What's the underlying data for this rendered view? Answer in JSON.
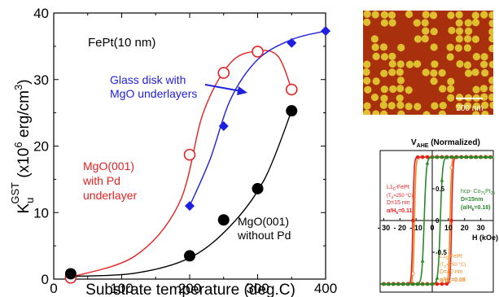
{
  "chart_data": [
    {
      "type": "scatter",
      "xlabel": "Substrate temperature (deg.C)",
      "ylabel_main": "K",
      "ylabel_sub": "u",
      "ylabel_sup": "GST",
      "ylabel_unit_a": " (x10",
      "ylabel_unit_sup": "6",
      "ylabel_unit_b": " erg/cm",
      "ylabel_unit_sup2": "3",
      "ylabel_unit_c": ")",
      "xlim": [
        0,
        400
      ],
      "ylim": [
        0,
        40
      ],
      "xticks": [
        "0",
        "100",
        "200",
        "300",
        "400"
      ],
      "yticks": [
        "0",
        "10",
        "20",
        "30",
        "40"
      ],
      "inset_text": "FePt(10 nm)",
      "series": [
        {
          "color": "#e82020",
          "marker": "open-circle",
          "x": [
            25,
            200,
            250,
            300,
            350
          ],
          "y": [
            0.2,
            18.7,
            31.0,
            34.2,
            28.5
          ]
        },
        {
          "color": "#1f1fe0",
          "marker": "diamond",
          "x": [
            200,
            250,
            350,
            400
          ],
          "y": [
            11.0,
            23.0,
            35.5,
            37.3
          ]
        },
        {
          "color": "#000000",
          "marker": "filled-circle",
          "x": [
            25,
            200,
            250,
            300,
            350
          ],
          "y": [
            0.8,
            3.5,
            8.9,
            13.6,
            25.3
          ]
        }
      ],
      "annotations": {
        "glass_line1": "Glass disk with",
        "glass_line2": "MgO underlayers",
        "mgo_pd_line1": "MgO(001)",
        "mgo_pd_line2": "with Pd",
        "mgo_pd_line3": "underlayer",
        "mgo_nopd_line1": "MgO(001)",
        "mgo_nopd_line2": "without Pd"
      }
    },
    {
      "type": "line",
      "title_main": "V",
      "title_sub": "AHE",
      "title_rest": " (Normalized)",
      "xlabel": "H (kOe)",
      "xticks": [
        "- 30",
        "- 20",
        "- 10",
        "0",
        "10",
        "20",
        "30"
      ],
      "yticks": [
        "0.5",
        "0",
        "-0.5"
      ],
      "series": [
        {
          "color": "#e82020",
          "coercive_field_kOe": 12
        },
        {
          "color": "#2a8a2a",
          "coercive_field_kOe": 5
        },
        {
          "color": "#f08a20",
          "coercive_field_kOe": 11
        }
      ],
      "label_red": {
        "l1": "L1",
        "l1sub": "0",
        "l1b": "-FePt",
        "l2": "(T",
        "l2sub": "s",
        "l2b": "=250 °C)",
        "l3": "D=15 nm",
        "l4": "α/H",
        "l4sub": "k",
        "l4b": "=0.11"
      },
      "label_green": {
        "l1": "hcp- Co",
        "l1sub": "75",
        "l1b": "Pt",
        "l1sub2": "25",
        "l2": "D=15nm",
        "l3": "(α/H",
        "l3sub": "k",
        "l3b": "=0.18)"
      },
      "label_orange": {
        "l1": "L1",
        "l1sub": "0",
        "l1b": "-FePt",
        "l2": "(T",
        "l2sub": "s",
        "l2b": "=250 °C)",
        "l3": "D=40 nm",
        "l4": "α/H",
        "l4sub": "k",
        "l4b": "=0.08"
      }
    }
  ],
  "afm": {
    "scalebar_label": "200 nm",
    "bg_color": "#a8300c",
    "bump_color": "#e0c830"
  }
}
